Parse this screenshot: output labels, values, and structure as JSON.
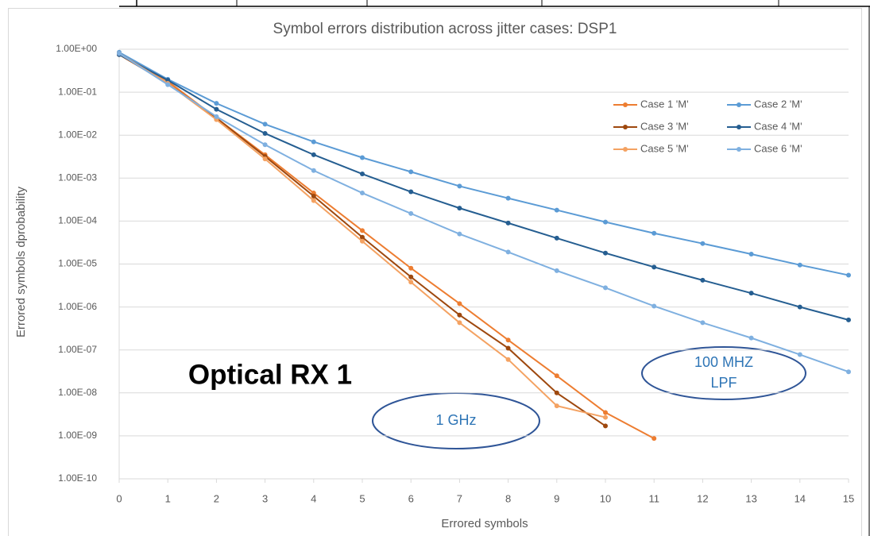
{
  "chart_data": {
    "type": "line",
    "title": "Symbol errors distribution across jitter cases: DSP1",
    "x_label": "Errored symbols",
    "y_label": "Errored symbols dprobability",
    "x": [
      0,
      1,
      2,
      3,
      4,
      5,
      6,
      7,
      8,
      9,
      10,
      11,
      12,
      13,
      14,
      15
    ],
    "xlim": [
      0,
      15
    ],
    "xticks": [
      0,
      1,
      2,
      3,
      4,
      5,
      6,
      7,
      8,
      9,
      10,
      11,
      12,
      13,
      14,
      15
    ],
    "ylim": [
      1e-10,
      1
    ],
    "yscale": "log",
    "yticks": [
      {
        "value": 1,
        "label": "1.00E+00"
      },
      {
        "value": 0.1,
        "label": "1.00E-01"
      },
      {
        "value": 0.01,
        "label": "1.00E-02"
      },
      {
        "value": 0.001,
        "label": "1.00E-03"
      },
      {
        "value": 0.0001,
        "label": "1.00E-04"
      },
      {
        "value": 1e-05,
        "label": "1.00E-05"
      },
      {
        "value": 1e-06,
        "label": "1.00E-06"
      },
      {
        "value": 1e-07,
        "label": "1.00E-07"
      },
      {
        "value": 1e-08,
        "label": "1.00E-08"
      },
      {
        "value": 1e-09,
        "label": "1.00E-09"
      },
      {
        "value": 1e-10,
        "label": "1.00E-10"
      }
    ],
    "grid": true,
    "legend": "upper right",
    "series": [
      {
        "name": "Case 1 'M'",
        "color": "#ed7d31",
        "values": [
          0.8,
          0.18,
          0.025,
          0.0035,
          0.00045,
          6e-05,
          8e-06,
          1.2e-06,
          1.7e-07,
          2.5e-08,
          3.5e-09,
          8.7e-10,
          null,
          null,
          null,
          null
        ]
      },
      {
        "name": "Case 2 'M'",
        "color": "#5b9bd5",
        "values": [
          0.85,
          0.2,
          0.055,
          0.018,
          0.007,
          0.003,
          0.0014,
          0.00065,
          0.00034,
          0.00018,
          9.5e-05,
          5.2e-05,
          3e-05,
          1.7e-05,
          9.5e-06,
          5.5e-06
        ]
      },
      {
        "name": "Case 3 'M'",
        "color": "#9e480e",
        "values": [
          0.75,
          0.16,
          0.025,
          0.0032,
          0.00038,
          4.2e-05,
          5e-06,
          6.5e-07,
          1.1e-07,
          1e-08,
          1.7e-09,
          null,
          null,
          null,
          null,
          null
        ]
      },
      {
        "name": "Case 4 'M'",
        "color": "#255e91",
        "values": [
          0.75,
          0.19,
          0.04,
          0.011,
          0.0035,
          0.00125,
          0.00048,
          0.0002,
          9e-05,
          4e-05,
          1.8e-05,
          8.5e-06,
          4.2e-06,
          2.1e-06,
          1e-06,
          5e-07
        ]
      },
      {
        "name": "Case 5 'M'",
        "color": "#f4a262",
        "values": [
          0.8,
          0.16,
          0.023,
          0.0028,
          0.0003,
          3.4e-05,
          3.8e-06,
          4.3e-07,
          6e-08,
          5e-09,
          2.7e-09,
          null,
          null,
          null,
          null,
          null
        ]
      },
      {
        "name": "Case 6 'M'",
        "color": "#7fb0e0",
        "values": [
          0.8,
          0.15,
          0.027,
          0.006,
          0.0015,
          0.00045,
          0.00015,
          5e-05,
          1.9e-05,
          7e-06,
          2.8e-06,
          1.05e-06,
          4.3e-07,
          1.9e-07,
          7.8e-08,
          3.1e-08
        ]
      }
    ],
    "annotations": [
      "Optical RX 1",
      "1 GHz",
      "100 MHZ",
      "LPF"
    ]
  }
}
